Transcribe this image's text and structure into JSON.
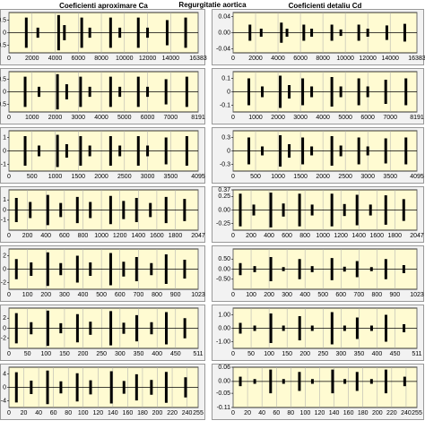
{
  "title": "Regurgitatie aortica",
  "chart_data": [
    {
      "type": "spike",
      "title": "Coeficienti aproximare Ca",
      "color": "#000000",
      "grid": true,
      "xlim": [
        0,
        16383
      ],
      "xticks": [
        0,
        2000,
        4000,
        6000,
        8000,
        10000,
        12000,
        14000,
        16383
      ],
      "ylim": [
        -0.8,
        0.8
      ],
      "yticks": [
        0.5,
        0,
        -0.5
      ],
      "x": [
        1500,
        2500,
        4300,
        4800,
        6300,
        7000,
        8800,
        9600,
        11200,
        12000,
        13700,
        15300
      ],
      "values": [
        0.6,
        0.2,
        0.7,
        0.3,
        0.6,
        0.2,
        0.6,
        0.2,
        0.6,
        0.2,
        0.5,
        0.6
      ]
    },
    {
      "type": "spike",
      "color": "#000000",
      "grid": true,
      "xlim": [
        0,
        8191
      ],
      "xticks": [
        0,
        1000,
        2000,
        3000,
        4000,
        5000,
        6000,
        7000,
        8191
      ],
      "ylim": [
        -0.8,
        0.8
      ],
      "yticks": [
        0.5,
        0,
        -0.5
      ],
      "x": [
        700,
        1300,
        2100,
        2500,
        3100,
        3500,
        4400,
        4800,
        5600,
        6000,
        6800,
        7700
      ],
      "values": [
        0.6,
        0.2,
        0.7,
        0.3,
        0.6,
        0.2,
        0.6,
        0.2,
        0.6,
        0.2,
        0.5,
        0.6
      ]
    },
    {
      "type": "spike",
      "color": "#000000",
      "grid": true,
      "xlim": [
        0,
        4095
      ],
      "xticks": [
        0,
        500,
        1000,
        1500,
        2000,
        2500,
        3000,
        3500,
        4095
      ],
      "ylim": [
        -1.5,
        1.5
      ],
      "yticks": [
        1,
        0,
        -1
      ],
      "x": [
        350,
        650,
        1050,
        1250,
        1550,
        1750,
        2200,
        2400,
        2800,
        3000,
        3400,
        3850
      ],
      "values": [
        1.1,
        0.4,
        1.2,
        0.5,
        1.1,
        0.4,
        1.1,
        0.4,
        1.1,
        0.4,
        1.0,
        1.1
      ]
    },
    {
      "type": "spike",
      "color": "#000000",
      "grid": true,
      "xlim": [
        0,
        2047
      ],
      "xticks": [
        0,
        200,
        400,
        600,
        800,
        1000,
        1200,
        1400,
        1600,
        1800,
        2047
      ],
      "ylim": [
        -2,
        2
      ],
      "yticks": [
        1,
        0,
        -1
      ],
      "x": [
        80,
        230,
        420,
        560,
        740,
        880,
        1100,
        1240,
        1380,
        1530,
        1700,
        1900
      ],
      "values": [
        1.2,
        0.8,
        1.5,
        0.7,
        1.3,
        0.8,
        1.4,
        0.9,
        1.2,
        0.7,
        1.3,
        1.1
      ]
    },
    {
      "type": "spike",
      "color": "#000000",
      "grid": true,
      "xlim": [
        0,
        1023
      ],
      "xticks": [
        0,
        100,
        200,
        300,
        400,
        500,
        600,
        700,
        800,
        900,
        1023
      ],
      "ylim": [
        -3,
        3
      ],
      "yticks": [
        2,
        0,
        -2
      ],
      "x": [
        40,
        120,
        210,
        280,
        370,
        440,
        550,
        620,
        690,
        770,
        850,
        950
      ],
      "values": [
        1.5,
        1.0,
        2.5,
        0.9,
        2.0,
        1.0,
        2.4,
        1.1,
        1.8,
        0.9,
        2.2,
        1.4
      ]
    },
    {
      "type": "spike",
      "color": "#000000",
      "grid": true,
      "xlim": [
        0,
        511
      ],
      "xticks": [
        0,
        50,
        100,
        150,
        200,
        250,
        300,
        350,
        400,
        450,
        511
      ],
      "ylim": [
        -4,
        4
      ],
      "yticks": [
        2,
        0,
        -2
      ],
      "x": [
        20,
        60,
        105,
        140,
        185,
        220,
        275,
        310,
        345,
        385,
        425,
        475
      ],
      "values": [
        3.0,
        1.2,
        3.5,
        1.0,
        2.8,
        1.3,
        3.4,
        1.1,
        2.6,
        1.2,
        3.2,
        2.0
      ]
    },
    {
      "type": "spike",
      "color": "#000000",
      "grid": true,
      "xlim": [
        0,
        255
      ],
      "xticks": [
        0,
        20,
        40,
        60,
        80,
        100,
        120,
        140,
        160,
        180,
        200,
        220,
        240,
        255
      ],
      "ylim": [
        -6,
        6
      ],
      "yticks": [
        4,
        0,
        -4
      ],
      "x": [
        10,
        30,
        52,
        70,
        92,
        110,
        138,
        155,
        172,
        192,
        212,
        238
      ],
      "values": [
        4.5,
        2.0,
        5.0,
        1.8,
        4.2,
        2.1,
        4.8,
        1.9,
        3.9,
        2.2,
        4.6,
        3.0
      ]
    },
    {
      "type": "spike",
      "title": "Coeficienti detaliu Cd",
      "color": "#000000",
      "grid": true,
      "xlim": [
        0,
        16383
      ],
      "xticks": [
        0,
        2000,
        4000,
        6000,
        8000,
        10000,
        12000,
        14000,
        16383
      ],
      "ylim": [
        -0.05,
        0.05
      ],
      "yticks": [
        {
          "value": 0.04,
          "label": "0.04"
        },
        {
          "value": 0,
          "label": "0.00"
        },
        {
          "value": -0.04,
          "label": "-0.04"
        }
      ],
      "x": [
        1500,
        2500,
        4300,
        4800,
        6300,
        7000,
        8800,
        9600,
        11200,
        12000,
        13700,
        15300
      ],
      "values": [
        0.02,
        0.01,
        0.025,
        0.01,
        0.02,
        0.01,
        0.02,
        0.008,
        0.02,
        0.01,
        0.018,
        0.022
      ]
    },
    {
      "type": "spike",
      "color": "#000000",
      "grid": true,
      "xlim": [
        0,
        8191
      ],
      "xticks": [
        0,
        1000,
        2000,
        3000,
        4000,
        5000,
        6000,
        7000,
        8191
      ],
      "ylim": [
        -0.15,
        0.15
      ],
      "yticks": [
        0.1,
        0,
        -0.1
      ],
      "x": [
        700,
        1300,
        2100,
        2500,
        3100,
        3500,
        4400,
        4800,
        5600,
        6000,
        6800,
        7700
      ],
      "values": [
        0.1,
        0.04,
        0.12,
        0.05,
        0.1,
        0.04,
        0.11,
        0.04,
        0.1,
        0.04,
        0.09,
        0.1
      ]
    },
    {
      "type": "spike",
      "color": "#000000",
      "grid": true,
      "xlim": [
        0,
        4095
      ],
      "xticks": [
        0,
        500,
        1000,
        1500,
        2000,
        2500,
        3000,
        3500,
        4095
      ],
      "ylim": [
        -0.45,
        0.45
      ],
      "yticks": [
        0.3,
        0,
        -0.3
      ],
      "x": [
        350,
        650,
        1050,
        1250,
        1550,
        1750,
        2200,
        2400,
        2800,
        3000,
        3400,
        3850
      ],
      "values": [
        0.3,
        0.1,
        0.35,
        0.15,
        0.3,
        0.1,
        0.33,
        0.12,
        0.3,
        0.1,
        0.28,
        0.3
      ]
    },
    {
      "type": "spike",
      "color": "#000000",
      "grid": true,
      "xlim": [
        0,
        2047
      ],
      "xticks": [
        0,
        200,
        400,
        600,
        800,
        1000,
        1200,
        1400,
        1600,
        1800,
        2047
      ],
      "ylim": [
        -0.37,
        0.37
      ],
      "yticks": [
        {
          "value": 0.37,
          "label": "0.37"
        },
        {
          "value": 0.25,
          "label": "0.25"
        },
        {
          "value": 0,
          "label": "0.00"
        },
        {
          "value": -0.25,
          "label": "-0.25"
        }
      ],
      "x": [
        80,
        230,
        420,
        560,
        740,
        880,
        1100,
        1240,
        1380,
        1530,
        1700,
        1900
      ],
      "values": [
        0.3,
        0.1,
        0.32,
        0.12,
        0.3,
        0.1,
        0.3,
        0.11,
        0.28,
        0.1,
        0.27,
        0.2
      ]
    },
    {
      "type": "spike",
      "color": "#000000",
      "grid": true,
      "xlim": [
        0,
        1023
      ],
      "xticks": [
        0,
        100,
        200,
        300,
        400,
        500,
        600,
        700,
        800,
        900,
        1023
      ],
      "ylim": [
        -1,
        1
      ],
      "yticks": [
        {
          "value": 0.5,
          "label": "0.50"
        },
        {
          "value": 0,
          "label": "0.00"
        },
        {
          "value": -0.5,
          "label": "-0.50"
        }
      ],
      "x": [
        40,
        120,
        210,
        280,
        370,
        440,
        550,
        620,
        690,
        770,
        850,
        950
      ],
      "values": [
        0.3,
        0.15,
        0.6,
        0.1,
        0.5,
        0.15,
        0.55,
        0.12,
        0.4,
        0.1,
        0.5,
        0.2
      ]
    },
    {
      "type": "spike",
      "color": "#000000",
      "grid": true,
      "xlim": [
        0,
        511
      ],
      "xticks": [
        0,
        50,
        100,
        150,
        200,
        250,
        300,
        350,
        400,
        450,
        511
      ],
      "ylim": [
        -1.5,
        1.5
      ],
      "yticks": [
        {
          "value": 1,
          "label": "1.00"
        },
        {
          "value": 0,
          "label": "0.00"
        },
        {
          "value": -1,
          "label": "-1.00"
        }
      ],
      "x": [
        20,
        60,
        105,
        140,
        185,
        220,
        275,
        310,
        345,
        385,
        425,
        475
      ],
      "values": [
        0.4,
        0.2,
        1.1,
        0.2,
        0.9,
        0.2,
        1.2,
        0.2,
        0.8,
        0.2,
        1.0,
        0.3
      ]
    },
    {
      "type": "spike",
      "color": "#000000",
      "grid": true,
      "xlim": [
        0,
        255
      ],
      "xticks": [
        0,
        20,
        40,
        60,
        80,
        100,
        120,
        140,
        160,
        180,
        200,
        220,
        240,
        255
      ],
      "ylim": [
        -0.11,
        0.06
      ],
      "yticks": [
        {
          "value": 0.06,
          "label": "0.06"
        },
        {
          "value": 0,
          "label": "0.00"
        },
        {
          "value": -0.05,
          "label": "-0.05"
        },
        {
          "value": -0.11,
          "label": "-0.11"
        }
      ],
      "x": [
        10,
        30,
        52,
        70,
        92,
        110,
        138,
        155,
        172,
        192,
        212,
        238
      ],
      "values": [
        0.02,
        0.01,
        0.05,
        0.01,
        0.04,
        0.01,
        0.05,
        0.01,
        0.04,
        0.01,
        0.05,
        0.02
      ]
    }
  ]
}
